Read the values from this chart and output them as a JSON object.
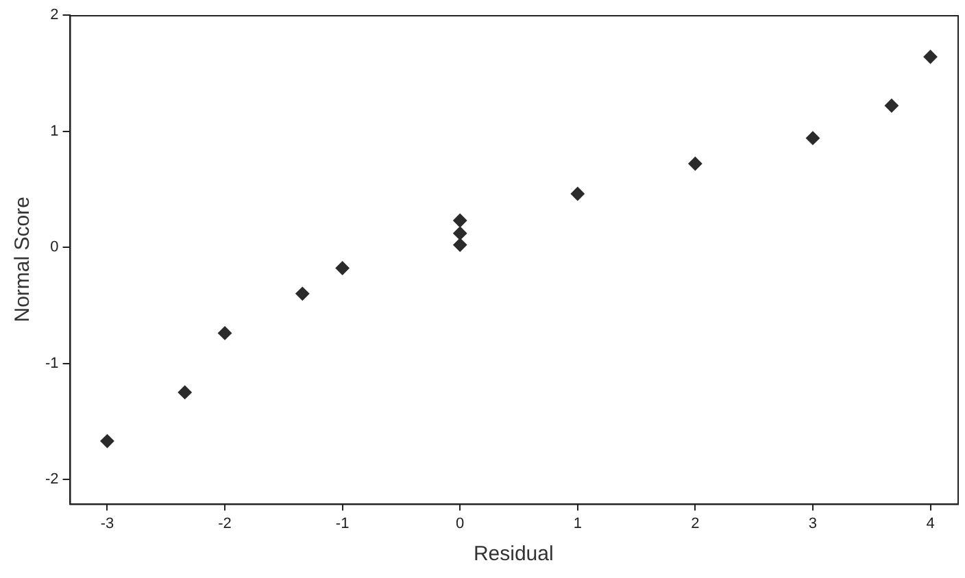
{
  "chart_data": {
    "type": "scatter",
    "xlabel": "Residual",
    "ylabel": "Normal Score",
    "marker": "diamond",
    "grid": false,
    "legend": false,
    "xlim": [
      -3.32,
      4.23
    ],
    "ylim": [
      -2.21,
      2.0
    ],
    "xticks": [
      -3,
      -2,
      -1,
      0,
      1,
      2,
      3,
      4
    ],
    "yticks": [
      -2,
      -1,
      0,
      1,
      2
    ],
    "series": [
      {
        "color": "#2b2b2b",
        "x": [
          -3,
          -2.34,
          -2,
          -1.34,
          -1,
          0,
          0,
          0,
          1,
          2,
          3,
          3.67,
          4
        ],
        "values": [
          -1.67,
          -1.25,
          -0.74,
          -0.4,
          -0.18,
          0.23,
          0.12,
          0.02,
          0.46,
          0.72,
          0.94,
          1.22,
          1.64
        ]
      }
    ]
  }
}
